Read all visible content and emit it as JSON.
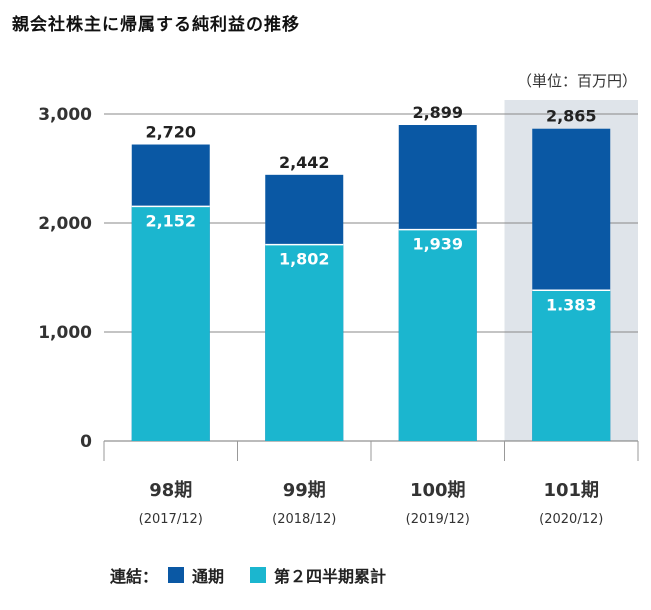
{
  "chart_data": {
    "type": "bar",
    "title": "親会社株主に帰属する純利益の推移",
    "unit": "（単位：百万円）",
    "categories": [
      "98期",
      "99期",
      "100期",
      "101期"
    ],
    "subcategories": [
      "(2017/12)",
      "(2018/12)",
      "(2019/12)",
      "(2020/12)"
    ],
    "series": [
      {
        "name": "通期",
        "color": "#0a58a4",
        "values": [
          2720,
          2442,
          2899,
          2865
        ],
        "labels": [
          "2,720",
          "2,442",
          "2,899",
          "2,865"
        ]
      },
      {
        "name": "第２四半期累計",
        "color": "#1bb6cf",
        "values": [
          2152,
          1802,
          1939,
          1383
        ],
        "labels": [
          "2,152",
          "1,802",
          "1,939",
          "1.383"
        ]
      }
    ],
    "y_ticks": [
      0,
      1000,
      2000,
      3000
    ],
    "y_tick_labels": [
      "0",
      "1,000",
      "2,000",
      "3,000"
    ],
    "ylim": [
      0,
      3000
    ],
    "grid": true,
    "highlighted_category": "101期",
    "highlight_color": "#dfe4ea",
    "legend_prefix": "連結："
  }
}
